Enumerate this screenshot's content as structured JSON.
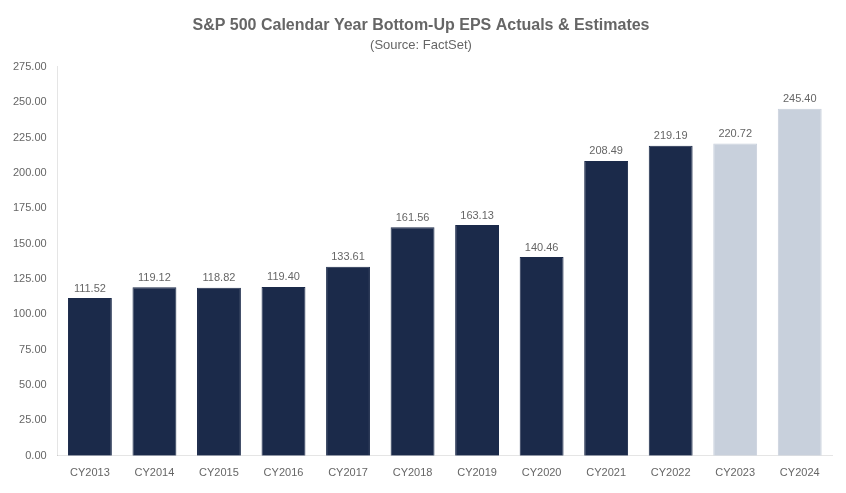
{
  "chart_data": {
    "type": "bar",
    "title": "S&P 500 Calendar Year Bottom-Up EPS Actuals & Estimates",
    "subtitle": "(Source: FactSet)",
    "categories": [
      "CY2013",
      "CY2014",
      "CY2015",
      "CY2016",
      "CY2017",
      "CY2018",
      "CY2019",
      "CY2020",
      "CY2021",
      "CY2022",
      "CY2023",
      "CY2024"
    ],
    "values": [
      111.52,
      119.12,
      118.82,
      119.4,
      133.61,
      161.56,
      163.13,
      140.46,
      208.49,
      219.19,
      220.72,
      245.4
    ],
    "value_labels": [
      "111.52",
      "119.12",
      "118.82",
      "119.40",
      "133.61",
      "161.56",
      "163.13",
      "140.46",
      "208.49",
      "219.19",
      "220.72",
      "245.40"
    ],
    "colors": [
      "#1b2a4a",
      "#1b2a4a",
      "#1b2a4a",
      "#1b2a4a",
      "#1b2a4a",
      "#1b2a4a",
      "#1b2a4a",
      "#1b2a4a",
      "#1b2a4a",
      "#1b2a4a",
      "#c8d0dc",
      "#c8d0dc"
    ],
    "data_labels": true,
    "ylim": [
      0,
      275
    ],
    "yticks": [
      {
        "value": 0,
        "label": "0.00"
      },
      {
        "value": 25,
        "label": "25.00"
      },
      {
        "value": 50,
        "label": "50.00"
      },
      {
        "value": 75,
        "label": "75.00"
      },
      {
        "value": 100,
        "label": "100.00"
      },
      {
        "value": 125,
        "label": "125.00"
      },
      {
        "value": 150,
        "label": "150.00"
      },
      {
        "value": 175,
        "label": "175.00"
      },
      {
        "value": 200,
        "label": "200.00"
      },
      {
        "value": 225,
        "label": "225.00"
      },
      {
        "value": 250,
        "label": "250.00"
      },
      {
        "value": 275,
        "label": "275.00"
      }
    ],
    "grid": false
  }
}
